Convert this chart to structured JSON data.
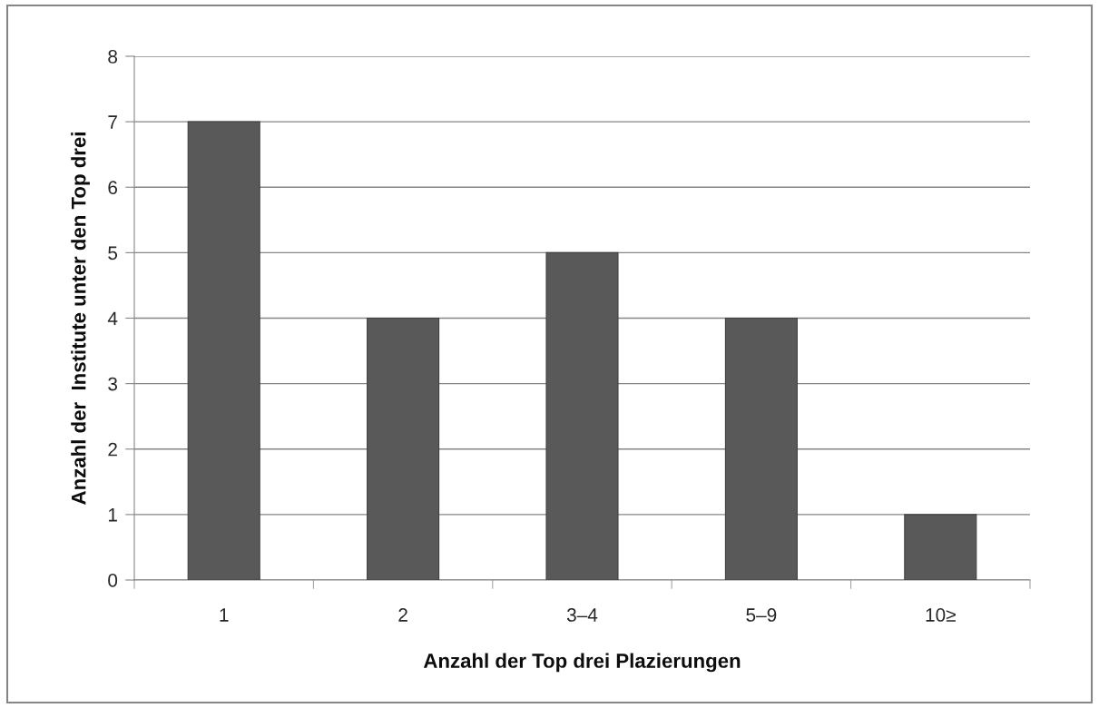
{
  "chart_data": {
    "type": "bar",
    "xlabel": "Anzahl der Top drei Plazierungen",
    "ylabel": "Anzahl der  Institute unter den Top drei",
    "categories": [
      "1",
      "2",
      "3–4",
      "5–9",
      "10≥"
    ],
    "values": [
      7,
      4,
      5,
      4,
      1
    ],
    "color": "#595959",
    "ylim": [
      0,
      8
    ],
    "yticks": [
      0,
      1,
      2,
      3,
      4,
      5,
      6,
      7,
      8
    ],
    "grid": "y",
    "legend": false
  }
}
